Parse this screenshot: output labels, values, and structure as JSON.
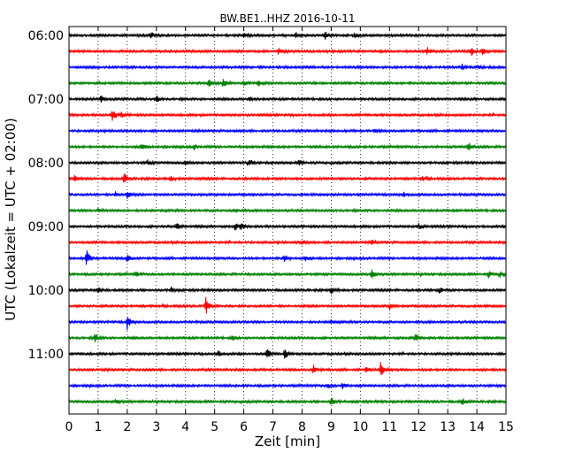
{
  "chart_data": {
    "type": "line",
    "title": "BW.BE1..HHZ 2016-10-11",
    "xlabel": "Zeit  [min]",
    "ylabel": "UTC (Lokalzeit = UTC + 02:00)",
    "xlim": [
      0,
      15
    ],
    "x_ticks": [
      "0",
      "1",
      "2",
      "3",
      "4",
      "5",
      "6",
      "7",
      "8",
      "9",
      "10",
      "11",
      "12",
      "13",
      "14",
      "15"
    ],
    "vertical_grid": "dotted",
    "legend": "none",
    "trace_interval_minutes": 15,
    "colors": [
      "#000000",
      "#ff0000",
      "#0000ff",
      "#008000"
    ],
    "y_ticks": [
      {
        "label": "06:00",
        "trace_index": 0
      },
      {
        "label": "07:00",
        "trace_index": 4
      },
      {
        "label": "08:00",
        "trace_index": 8
      },
      {
        "label": "09:00",
        "trace_index": 12
      },
      {
        "label": "10:00",
        "trace_index": 16
      },
      {
        "label": "11:00",
        "trace_index": 20
      }
    ],
    "traces": [
      {
        "start": "06:00",
        "events": [
          [
            2.8,
            5
          ],
          [
            6.0,
            3
          ],
          [
            7.8,
            4
          ],
          [
            8.8,
            5
          ],
          [
            9.8,
            3
          ]
        ]
      },
      {
        "start": "06:15",
        "events": [
          [
            7.2,
            4
          ],
          [
            12.3,
            4
          ],
          [
            13.8,
            5
          ],
          [
            14.2,
            3
          ]
        ]
      },
      {
        "start": "06:30",
        "events": [
          [
            13.5,
            3
          ],
          [
            14.0,
            2
          ]
        ]
      },
      {
        "start": "06:45",
        "events": [
          [
            4.8,
            4
          ],
          [
            5.3,
            5
          ],
          [
            6.0,
            4
          ],
          [
            6.5,
            3
          ]
        ]
      },
      {
        "start": "07:00",
        "events": [
          [
            1.1,
            4
          ],
          [
            3.0,
            4
          ],
          [
            6.2,
            2
          ]
        ]
      },
      {
        "start": "07:15",
        "events": [
          [
            1.5,
            9
          ],
          [
            1.8,
            3
          ]
        ]
      },
      {
        "start": "07:30",
        "events": [
          [
            10.5,
            2
          ]
        ]
      },
      {
        "start": "07:45",
        "events": [
          [
            2.5,
            5
          ],
          [
            4.3,
            3
          ],
          [
            13.7,
            6
          ]
        ]
      },
      {
        "start": "08:00",
        "events": [
          [
            2.7,
            3
          ],
          [
            4.0,
            3
          ],
          [
            6.2,
            4
          ],
          [
            7.9,
            3
          ]
        ]
      },
      {
        "start": "08:15",
        "events": [
          [
            0.2,
            4
          ],
          [
            1.9,
            7
          ],
          [
            3.5,
            3
          ],
          [
            12.1,
            3
          ]
        ]
      },
      {
        "start": "08:30",
        "events": [
          [
            1.6,
            3
          ],
          [
            2.0,
            4
          ],
          [
            11.5,
            3
          ]
        ]
      },
      {
        "start": "08:45",
        "events": [
          [
            1.0,
            3
          ],
          [
            5.7,
            2
          ]
        ]
      },
      {
        "start": "09:00",
        "events": [
          [
            3.7,
            5
          ],
          [
            5.7,
            4
          ],
          [
            5.9,
            3
          ],
          [
            12.0,
            4
          ]
        ]
      },
      {
        "start": "09:15",
        "events": [
          [
            8.0,
            3
          ],
          [
            10.4,
            2
          ]
        ]
      },
      {
        "start": "09:30",
        "events": [
          [
            0.6,
            10
          ],
          [
            2.0,
            6
          ],
          [
            7.4,
            5
          ],
          [
            8.1,
            3
          ]
        ]
      },
      {
        "start": "09:45",
        "events": [
          [
            2.3,
            3
          ],
          [
            10.4,
            6
          ],
          [
            14.4,
            4
          ],
          [
            14.8,
            3
          ]
        ]
      },
      {
        "start": "10:00",
        "events": [
          [
            1.0,
            3
          ],
          [
            3.5,
            3
          ],
          [
            9.0,
            4
          ],
          [
            12.7,
            4
          ]
        ]
      },
      {
        "start": "10:15",
        "events": [
          [
            4.7,
            11
          ],
          [
            11.0,
            3
          ]
        ]
      },
      {
        "start": "10:30",
        "events": [
          [
            2.0,
            9
          ],
          [
            9.0,
            3
          ]
        ]
      },
      {
        "start": "10:45",
        "events": [
          [
            0.9,
            6
          ],
          [
            5.6,
            3
          ],
          [
            11.9,
            4
          ]
        ]
      },
      {
        "start": "11:00",
        "events": [
          [
            5.1,
            4
          ],
          [
            6.8,
            6
          ],
          [
            7.4,
            7
          ]
        ]
      },
      {
        "start": "11:15",
        "events": [
          [
            8.4,
            5
          ],
          [
            10.7,
            9
          ],
          [
            10.2,
            3
          ]
        ]
      },
      {
        "start": "11:30",
        "events": [
          [
            8.9,
            3
          ],
          [
            9.4,
            4
          ]
        ]
      },
      {
        "start": "11:45",
        "events": [
          [
            1.6,
            3
          ],
          [
            9.0,
            6
          ],
          [
            13.5,
            4
          ]
        ]
      }
    ]
  }
}
